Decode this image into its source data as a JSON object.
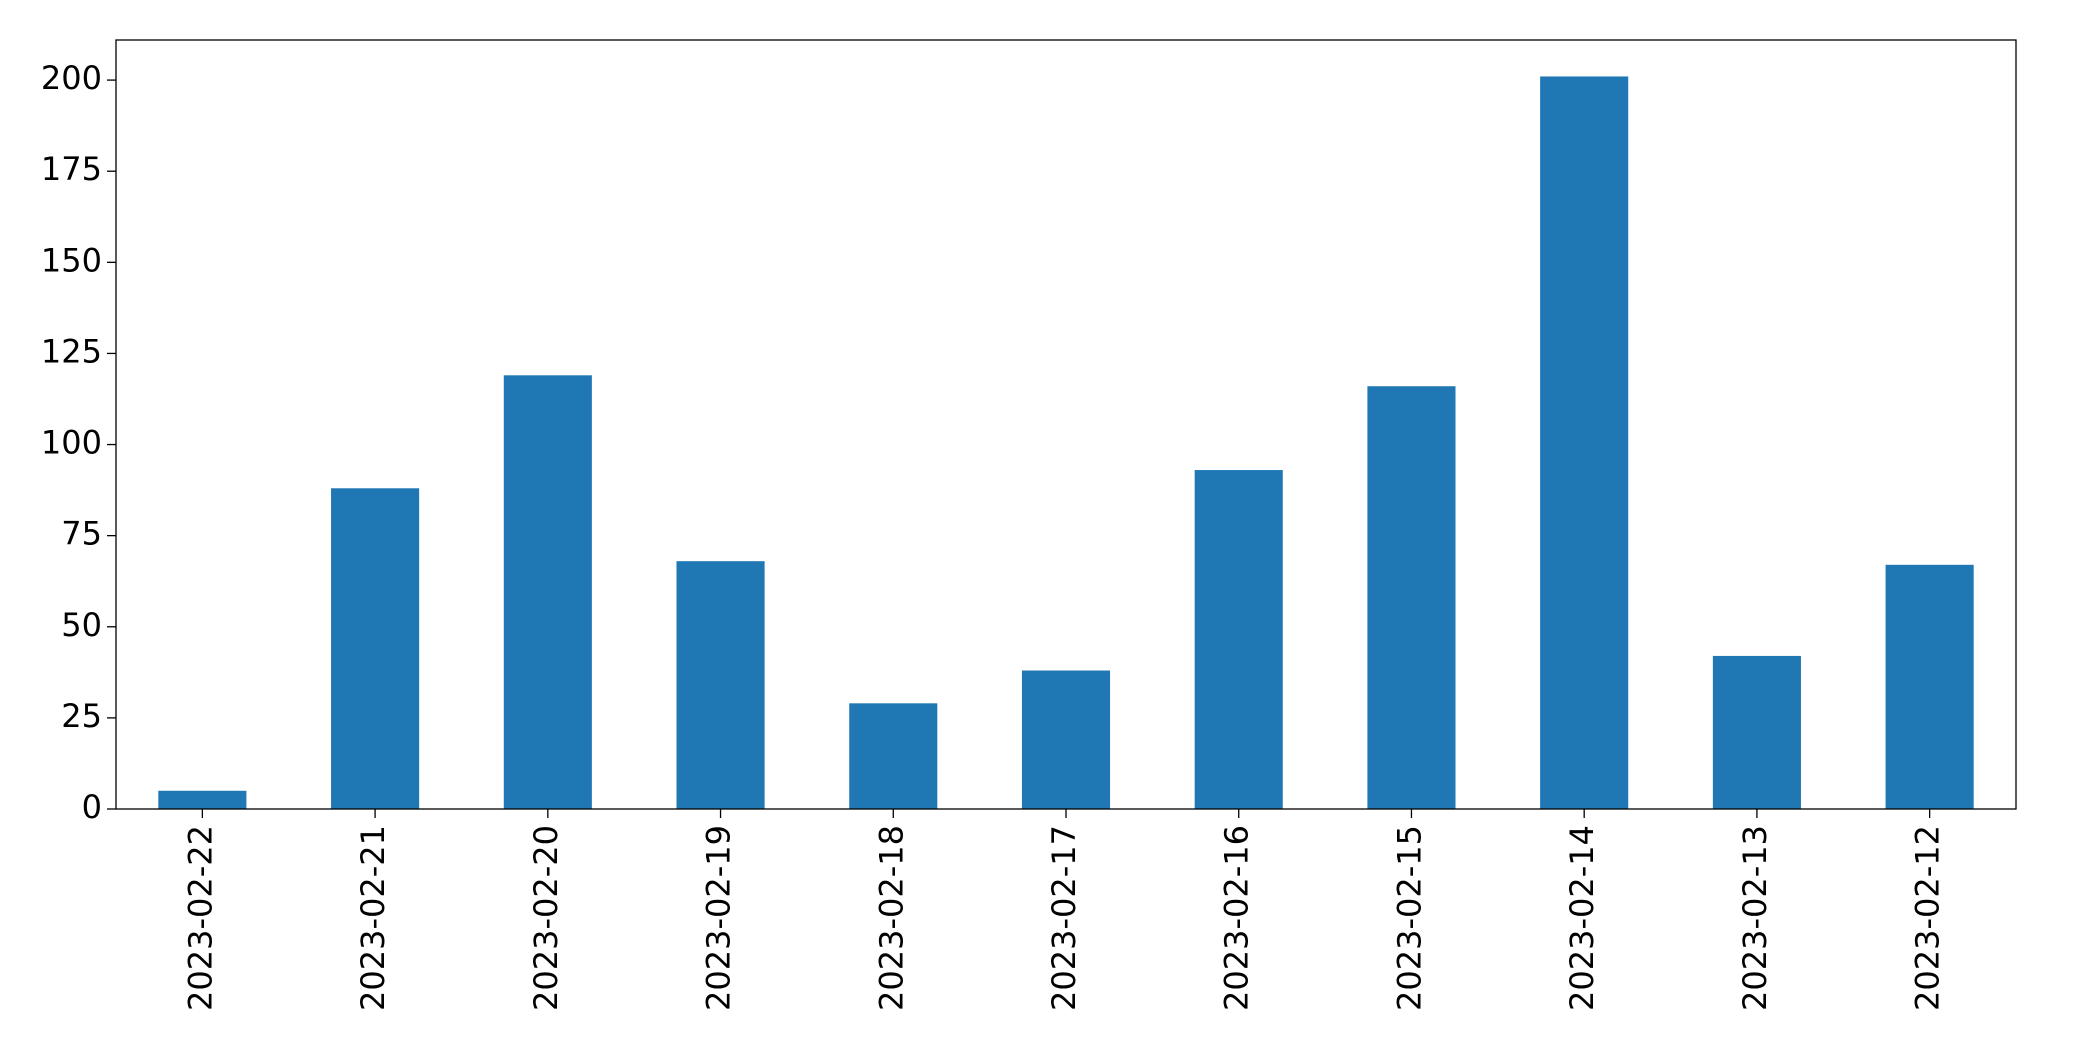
{
  "chart_data": {
    "type": "bar",
    "categories": [
      "2023-02-22",
      "2023-02-21",
      "2023-02-20",
      "2023-02-19",
      "2023-02-18",
      "2023-02-17",
      "2023-02-16",
      "2023-02-15",
      "2023-02-14",
      "2023-02-13",
      "2023-02-12"
    ],
    "values": [
      5,
      88,
      119,
      68,
      29,
      38,
      93,
      116,
      201,
      42,
      67
    ],
    "color": "#1f77b4",
    "ylim": [
      0,
      211
    ],
    "yticks": [
      0,
      25,
      50,
      75,
      100,
      125,
      150,
      175,
      200
    ],
    "grid": false
  }
}
